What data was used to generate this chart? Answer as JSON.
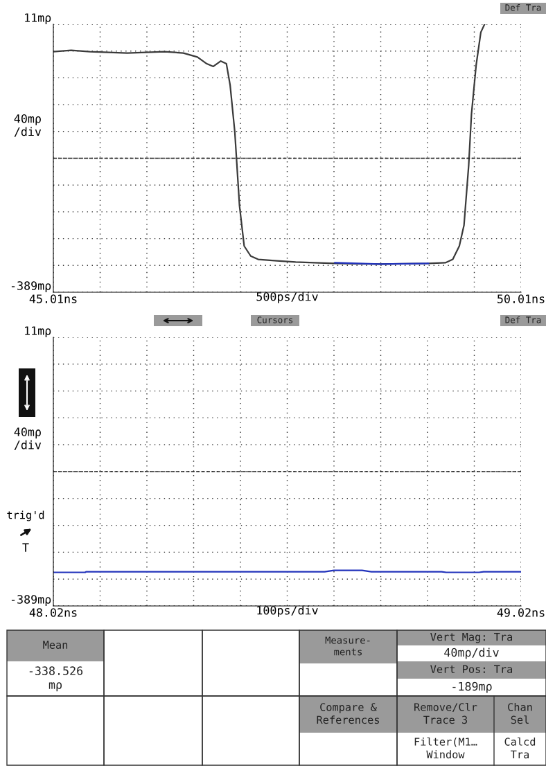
{
  "chart_data": [
    {
      "type": "line",
      "xlabel": "500ps/div",
      "ylabel": "40mρ\n/div",
      "xlim": [
        45.01,
        50.01
      ],
      "ylim": [
        -389,
        11
      ],
      "xticks": [
        {
          "value": 45.01,
          "label": "45.01ns"
        },
        {
          "value": 45.51,
          "label": null
        },
        {
          "value": 46.01,
          "label": null
        },
        {
          "value": 46.51,
          "label": null
        },
        {
          "value": 47.01,
          "label": null
        },
        {
          "value": 47.51,
          "label": null
        },
        {
          "value": 48.01,
          "label": null
        },
        {
          "value": 48.51,
          "label": null
        },
        {
          "value": 49.01,
          "label": null
        },
        {
          "value": 49.51,
          "label": null
        },
        {
          "value": 50.01,
          "label": "50.01ns"
        }
      ],
      "yticks": [
        {
          "value": 11,
          "label": "11mρ"
        },
        {
          "value": -29,
          "label": null
        },
        {
          "value": -69,
          "label": null
        },
        {
          "value": -109,
          "label": null
        },
        {
          "value": -149,
          "label": null
        },
        {
          "value": -189,
          "label": null
        },
        {
          "value": -229,
          "label": null
        },
        {
          "value": -269,
          "label": null
        },
        {
          "value": -309,
          "label": null
        },
        {
          "value": -349,
          "label": null
        },
        {
          "value": -389,
          "label": "-389mρ"
        }
      ],
      "grid": true,
      "marker": "none",
      "line_style": "solid",
      "ref_lines": [
        {
          "axis": "y",
          "value": -189,
          "color": "#222222",
          "line_style": "dashed"
        }
      ],
      "series": [
        {
          "color": "#3a3a3a",
          "x": [
            45.01,
            45.2,
            45.4,
            45.6,
            45.8,
            46.0,
            46.2,
            46.4,
            46.55,
            46.65,
            46.72,
            46.8,
            46.86,
            46.9,
            46.95,
            47.0,
            47.05,
            47.12,
            47.2,
            47.4,
            47.6,
            47.8,
            48.02,
            48.5,
            49.02,
            49.2,
            49.28,
            49.35,
            49.4,
            49.45,
            49.48,
            49.53,
            49.58,
            49.62
          ],
          "values": [
            -30,
            -28,
            -30,
            -31,
            -32,
            -31,
            -30,
            -32,
            -38,
            -48,
            -52,
            -44,
            -48,
            -80,
            -150,
            -260,
            -320,
            -335,
            -340,
            -342,
            -344,
            -345,
            -346,
            -347,
            -346,
            -345,
            -340,
            -320,
            -289,
            -200,
            -123,
            -50,
            -1,
            11
          ]
        },
        {
          "color": "#2233bb",
          "x": [
            48.02,
            48.5,
            49.02
          ],
          "values": [
            -345,
            -347,
            -346
          ]
        }
      ],
      "annotations": [
        "Def Tra"
      ]
    },
    {
      "type": "line",
      "xlabel": "100ps/div",
      "ylabel": "40mρ\n/div",
      "xlim": [
        48.02,
        49.02
      ],
      "ylim": [
        -389,
        11
      ],
      "xticks": [
        {
          "value": 48.02,
          "label": "48.02ns"
        },
        {
          "value": 48.12,
          "label": null
        },
        {
          "value": 48.22,
          "label": null
        },
        {
          "value": 48.32,
          "label": null
        },
        {
          "value": 48.42,
          "label": null
        },
        {
          "value": 48.52,
          "label": null
        },
        {
          "value": 48.62,
          "label": null
        },
        {
          "value": 48.72,
          "label": null
        },
        {
          "value": 48.82,
          "label": null
        },
        {
          "value": 48.92,
          "label": null
        },
        {
          "value": 49.02,
          "label": "49.02ns"
        }
      ],
      "yticks": [
        {
          "value": 11,
          "label": "11mρ"
        },
        {
          "value": -29,
          "label": null
        },
        {
          "value": -69,
          "label": null
        },
        {
          "value": -109,
          "label": null
        },
        {
          "value": -149,
          "label": null
        },
        {
          "value": -189,
          "label": null
        },
        {
          "value": -229,
          "label": null
        },
        {
          "value": -269,
          "label": null
        },
        {
          "value": -309,
          "label": null
        },
        {
          "value": -349,
          "label": null
        },
        {
          "value": -389,
          "label": "-389mρ"
        }
      ],
      "grid": true,
      "marker": "none",
      "line_style": "solid",
      "ref_lines": [
        {
          "axis": "y",
          "value": -189,
          "color": "#222222",
          "line_style": "dashed"
        }
      ],
      "series": [
        {
          "color": "#2233bb",
          "x": [
            48.02,
            48.088,
            48.09,
            48.6,
            48.62,
            48.68,
            48.7,
            48.85,
            48.86,
            48.93,
            48.94,
            49.02
          ],
          "values": [
            -339,
            -339,
            -338,
            -338,
            -336,
            -336,
            -338,
            -338,
            -339,
            -339,
            -338,
            -338
          ]
        }
      ],
      "annotations": [
        "Def Tra",
        "Cursors",
        "trig'd",
        "T",
        "Mean",
        "-338.526\nmρ",
        "Measure-\nments",
        "Vert Mag: Tra",
        "40mρ/div",
        "Vert Pos: Tra",
        "-189mρ",
        "Compare &\nReferences",
        "Remove/Clr\nTrace 3",
        "Chan\nSel",
        "Filter(M1…\nWindow",
        "Calcd\nTra"
      ]
    }
  ]
}
